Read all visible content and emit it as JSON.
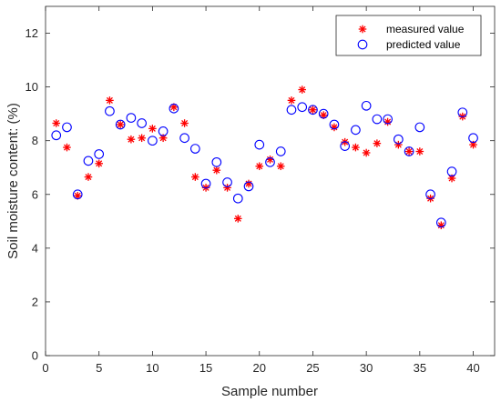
{
  "chart_data": {
    "type": "scatter",
    "title": "",
    "xlabel": "Sample number",
    "ylabel": "Soil moisture content: (%)",
    "xlim": [
      0,
      42
    ],
    "ylim": [
      0,
      13
    ],
    "xticks": [
      0,
      5,
      10,
      15,
      20,
      25,
      30,
      35,
      40
    ],
    "yticks": [
      0,
      2,
      4,
      6,
      8,
      10,
      12
    ],
    "grid": false,
    "legend_position": "top-right",
    "series": [
      {
        "name": "measured value",
        "marker": "asterisk",
        "color": "#ff0000",
        "x": [
          1,
          2,
          3,
          4,
          5,
          6,
          7,
          8,
          9,
          10,
          11,
          12,
          13,
          14,
          15,
          16,
          17,
          18,
          19,
          20,
          21,
          22,
          23,
          24,
          25,
          26,
          27,
          28,
          29,
          30,
          31,
          32,
          33,
          34,
          35,
          36,
          37,
          38,
          39,
          40
        ],
        "y": [
          8.65,
          7.75,
          5.95,
          6.65,
          7.15,
          9.5,
          8.6,
          8.05,
          8.1,
          8.45,
          8.1,
          9.25,
          8.65,
          6.65,
          6.25,
          6.9,
          6.25,
          5.1,
          6.4,
          7.05,
          7.3,
          7.05,
          9.5,
          9.9,
          9.15,
          8.95,
          8.5,
          7.95,
          7.75,
          7.55,
          7.9,
          8.7,
          7.85,
          7.6,
          7.6,
          5.85,
          4.85,
          6.6,
          8.9,
          7.85
        ]
      },
      {
        "name": "predicted value",
        "marker": "circle",
        "color": "#0000ff",
        "x": [
          1,
          2,
          3,
          4,
          5,
          6,
          7,
          8,
          9,
          10,
          11,
          12,
          13,
          14,
          15,
          16,
          17,
          18,
          19,
          20,
          21,
          22,
          23,
          24,
          25,
          26,
          27,
          28,
          29,
          30,
          31,
          32,
          33,
          34,
          35,
          36,
          37,
          38,
          39,
          40
        ],
        "y": [
          8.2,
          8.5,
          6.0,
          7.25,
          7.5,
          9.1,
          8.6,
          8.85,
          8.65,
          8.0,
          8.35,
          9.2,
          8.1,
          7.7,
          6.4,
          7.2,
          6.45,
          5.85,
          6.3,
          7.85,
          7.2,
          7.6,
          9.15,
          9.25,
          9.15,
          9.0,
          8.6,
          7.8,
          8.4,
          9.3,
          8.8,
          8.8,
          8.05,
          7.6,
          8.5,
          6.0,
          4.95,
          6.85,
          9.05,
          8.1
        ]
      }
    ]
  }
}
